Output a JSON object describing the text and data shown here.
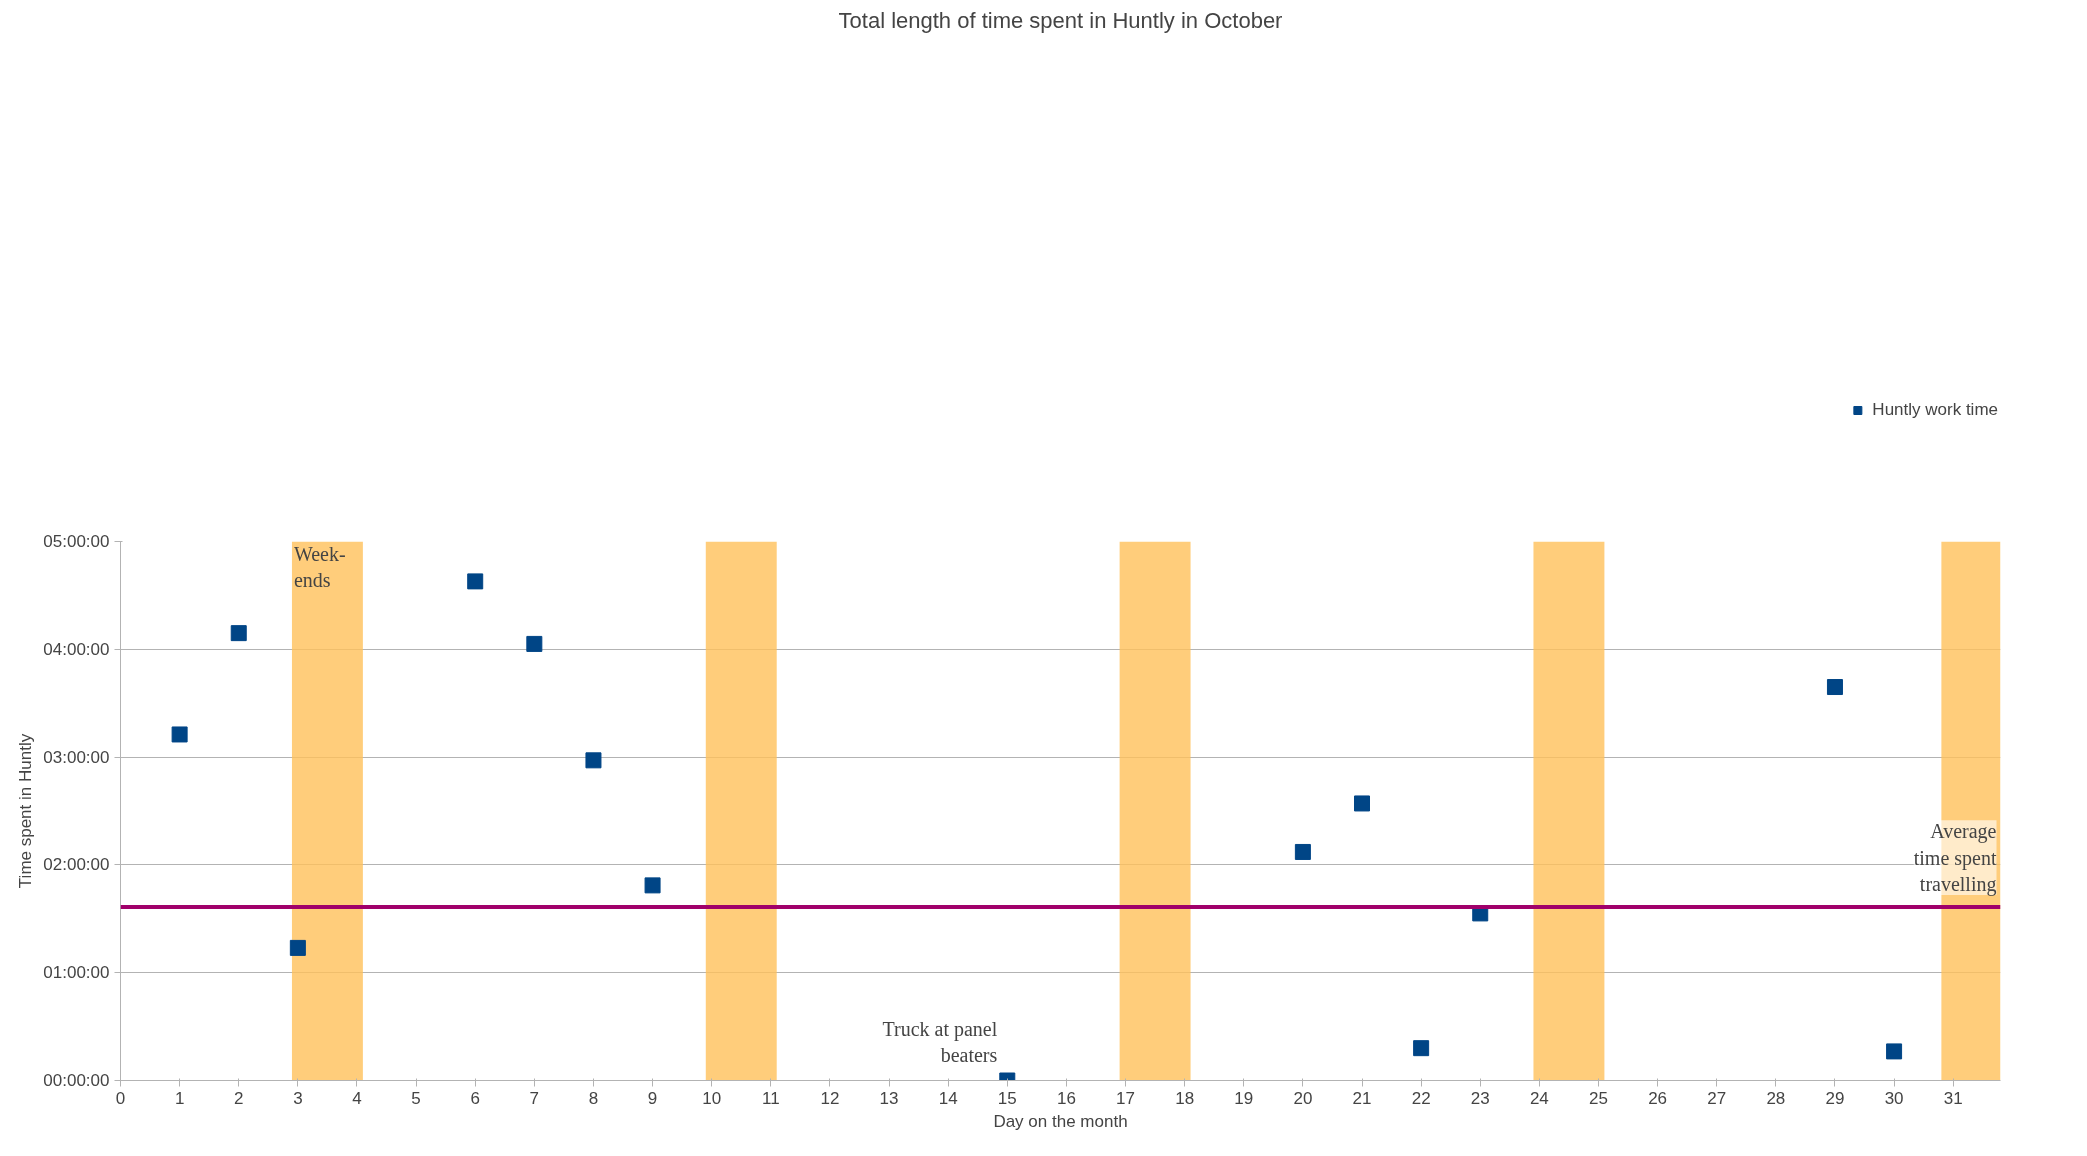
{
  "chart_data": {
    "type": "scatter",
    "title": "Total length of time spent in Huntly in October",
    "xlabel": "Day on the month",
    "ylabel": "Time spent in Huntly",
    "x": [
      1,
      2,
      3,
      6,
      7,
      8,
      9,
      15,
      20,
      21,
      22,
      23,
      29,
      30
    ],
    "series": [
      {
        "name": "Huntly work time",
        "color": "#004586",
        "values": [
          3.21,
          4.15,
          1.23,
          4.63,
          4.05,
          2.97,
          1.81,
          0,
          2.12,
          2.57,
          0.3,
          1.55,
          3.65,
          0.27
        ]
      }
    ],
    "marker": "square",
    "grid": "y",
    "legend": "top right",
    "xlim": [
      0,
      31.8
    ],
    "xticks": [
      0,
      1,
      2,
      3,
      4,
      5,
      6,
      7,
      8,
      9,
      10,
      11,
      12,
      13,
      14,
      15,
      16,
      17,
      18,
      19,
      20,
      21,
      22,
      23,
      24,
      25,
      26,
      27,
      28,
      29,
      30,
      31
    ],
    "ylim": [
      0,
      5
    ],
    "yticks": [
      {
        "value": 0,
        "label": "00:00:00"
      },
      {
        "value": 1,
        "label": "01:00:00"
      },
      {
        "value": 2,
        "label": "02:00:00"
      },
      {
        "value": 3,
        "label": "03:00:00"
      },
      {
        "value": 4,
        "label": "04:00:00"
      },
      {
        "value": 5,
        "label": "05:00:00"
      }
    ],
    "ref_lines": [
      {
        "axis": "y",
        "value": 1.61,
        "label": "Average time spent travelling",
        "color": "#a0006a"
      }
    ],
    "bands": [
      {
        "axis": "x",
        "from": 2.9,
        "to": 4.1,
        "label": "Week-ends",
        "color": "#ffc05a"
      },
      {
        "axis": "x",
        "from": 9.9,
        "to": 11.1,
        "color": "#ffc05a"
      },
      {
        "axis": "x",
        "from": 16.9,
        "to": 18.1,
        "color": "#ffc05a"
      },
      {
        "axis": "x",
        "from": 23.9,
        "to": 25.1,
        "color": "#ffc05a"
      },
      {
        "axis": "x",
        "from": 30.8,
        "to": 31.8,
        "color": "#ffc05a"
      }
    ],
    "annotations": [
      {
        "text": "Truck at panel beaters",
        "x": 15,
        "y": 0
      }
    ]
  }
}
